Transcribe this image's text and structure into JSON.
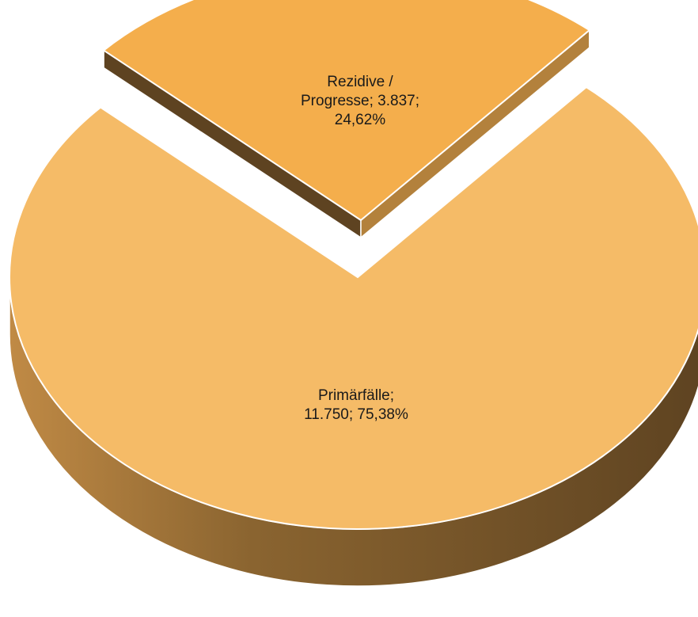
{
  "chart_data": {
    "type": "pie",
    "style": "3d-exploded",
    "slices": [
      {
        "label": "Primärfälle",
        "value": 11750,
        "value_text": "11.750",
        "percent": 75.38,
        "percent_text": "75,38%",
        "label_lines": [
          "Primärfälle;",
          "11.750; 75,38%"
        ],
        "color": "#f5bb67",
        "side_color": "#a97a36"
      },
      {
        "label": "Rezidive / Progresse",
        "value": 3837,
        "value_text": "3.837",
        "percent": 24.62,
        "percent_text": "24,62%",
        "label_lines": [
          "Rezidive /",
          "Progresse; 3.837;",
          "24,62%"
        ],
        "color": "#f4ae4c",
        "side_color": "#8a6128",
        "exploded": true
      }
    ],
    "legend": "none"
  }
}
